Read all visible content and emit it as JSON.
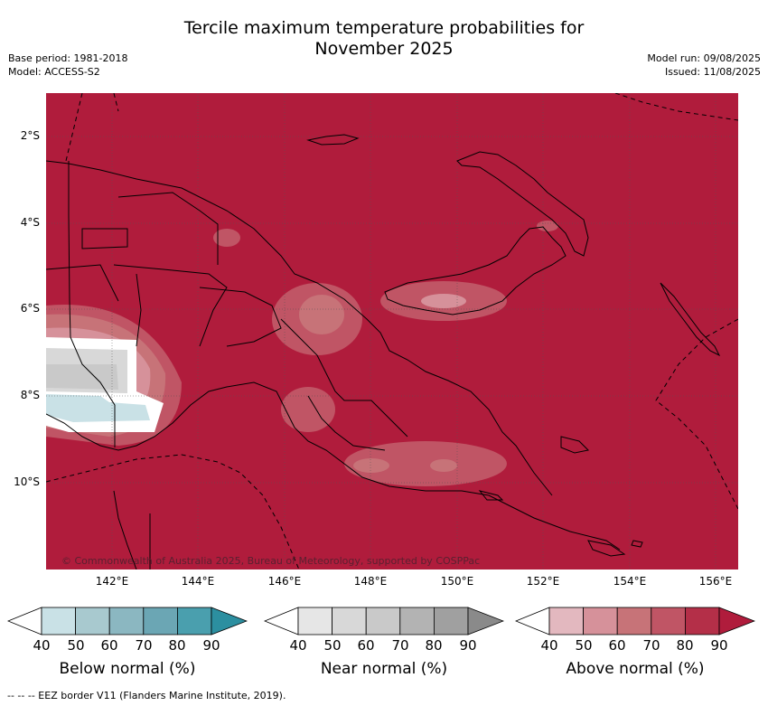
{
  "title_line1": "Tercile maximum temperature probabilities for",
  "title_line2": "November 2025",
  "base_period": "Base period: 1981-2018",
  "model": "Model: ACCESS-S2",
  "model_run": "Model run: 09/08/2025",
  "issued": "Issued: 11/08/2025",
  "copyright": "© Commonwealth of Australia 2025, Bureau of Meteorology, supported by COSPPac",
  "lat_labels": [
    "2°S",
    "4°S",
    "6°S",
    "8°S",
    "10°S"
  ],
  "lon_labels": [
    "142°E",
    "144°E",
    "146°E",
    "148°E",
    "150°E",
    "152°E",
    "154°E",
    "156°E"
  ],
  "legend_ticks": [
    "40",
    "50",
    "60",
    "70",
    "80",
    "90"
  ],
  "legends": {
    "below": {
      "caption": "Below normal (%)",
      "colors": [
        "#c9e1e6",
        "#a8c9cf",
        "#8bb7c1",
        "#6ba6b4",
        "#4a9fae",
        "#2c8fa0"
      ]
    },
    "near": {
      "caption": "Near normal (%)",
      "colors": [
        "#e6e6e6",
        "#d8d8d8",
        "#c9c9c9",
        "#b3b3b3",
        "#a0a0a0",
        "#8a8a8a"
      ]
    },
    "above": {
      "caption": "Above normal (%)",
      "colors": [
        "#e3b8bf",
        "#d6919a",
        "#c77378",
        "#c05565",
        "#b42f48",
        "#b01c3c"
      ]
    }
  },
  "footer": "--  --  -- EEZ border V11 (Flanders Marine Institute, 2019).",
  "colors": {
    "above_dominant": "#b01c3c",
    "coast": "#000000"
  }
}
